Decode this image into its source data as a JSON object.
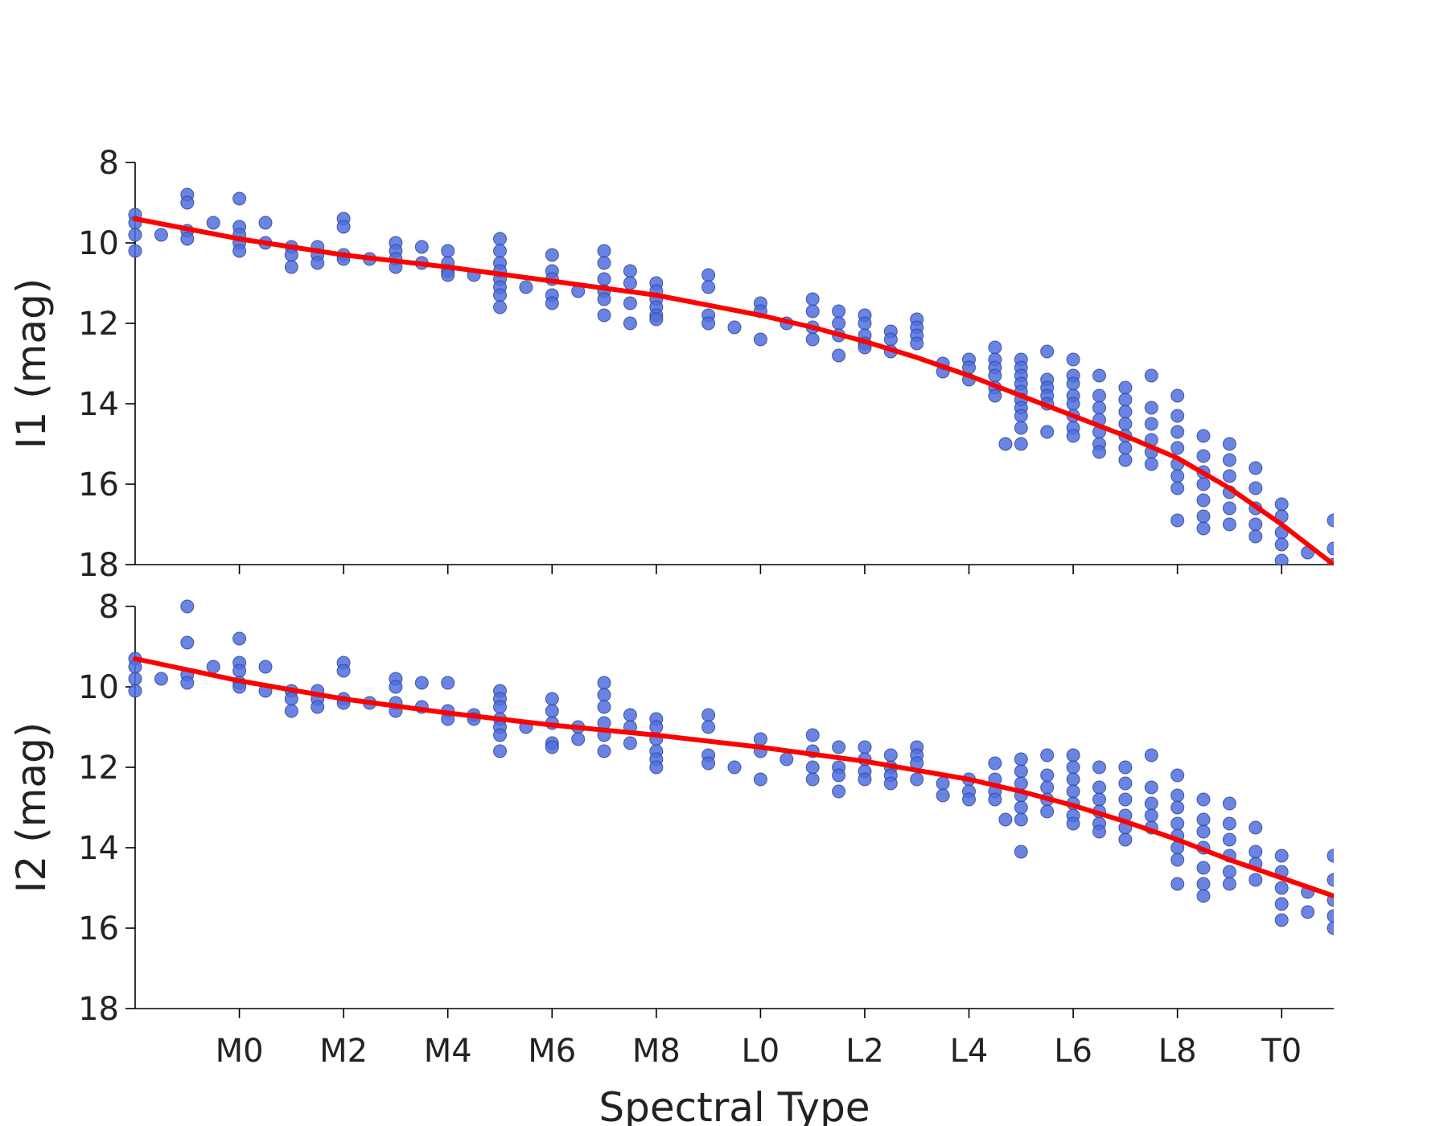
{
  "chart_data": {
    "type": "scatter",
    "xlabel": "Spectral Type",
    "x_tick_values": [
      0,
      2,
      4,
      6,
      8,
      10,
      12,
      14,
      16,
      18,
      20
    ],
    "x_tick_labels": [
      "M0",
      "M2",
      "M4",
      "M6",
      "M8",
      "L0",
      "L2",
      "L4",
      "L6",
      "L8",
      "T0"
    ],
    "xlim": [
      -2,
      21
    ],
    "colors": {
      "points": "#4f6fde",
      "fit": "#ff0000"
    },
    "panels": [
      {
        "ylabel": "I1 (mag)",
        "ylim": [
          8,
          18
        ],
        "y_inverted": true,
        "y_ticks": [
          8,
          10,
          12,
          14,
          16,
          18
        ],
        "fit_line": {
          "x": [
            -2,
            0,
            2,
            4,
            6,
            8,
            9,
            10,
            11,
            12,
            13,
            14,
            15,
            16,
            17,
            18,
            19,
            20,
            21
          ],
          "y": [
            9.4,
            9.9,
            10.3,
            10.6,
            10.95,
            11.3,
            11.55,
            11.8,
            12.1,
            12.45,
            12.85,
            13.3,
            13.8,
            14.3,
            14.8,
            15.35,
            16.1,
            17.0,
            18.0
          ]
        },
        "points": [
          {
            "x": -2,
            "y": [
              9.3,
              9.5,
              9.8,
              10.2
            ]
          },
          {
            "x": -1.5,
            "y": [
              9.8
            ]
          },
          {
            "x": -1,
            "y": [
              8.8,
              9.0,
              9.7,
              9.9
            ]
          },
          {
            "x": -0.5,
            "y": [
              9.5
            ]
          },
          {
            "x": 0,
            "y": [
              8.9,
              9.6,
              9.8,
              10.0,
              10.2
            ]
          },
          {
            "x": 0.5,
            "y": [
              9.5,
              10.0
            ]
          },
          {
            "x": 1,
            "y": [
              10.1,
              10.3,
              10.6
            ]
          },
          {
            "x": 1.5,
            "y": [
              10.1,
              10.3,
              10.5
            ]
          },
          {
            "x": 2,
            "y": [
              9.4,
              9.6,
              10.3,
              10.4
            ]
          },
          {
            "x": 2.5,
            "y": [
              10.4
            ]
          },
          {
            "x": 3,
            "y": [
              10.0,
              10.2,
              10.4,
              10.6
            ]
          },
          {
            "x": 3.5,
            "y": [
              10.1,
              10.5
            ]
          },
          {
            "x": 4,
            "y": [
              10.2,
              10.5,
              10.7,
              10.8
            ]
          },
          {
            "x": 4.5,
            "y": [
              10.8
            ]
          },
          {
            "x": 5,
            "y": [
              9.9,
              10.2,
              10.5,
              10.7,
              10.9,
              11.1,
              11.3,
              11.6
            ]
          },
          {
            "x": 5.5,
            "y": [
              11.1
            ]
          },
          {
            "x": 6,
            "y": [
              10.3,
              10.7,
              10.9,
              11.3,
              11.5
            ]
          },
          {
            "x": 6.5,
            "y": [
              11.2
            ]
          },
          {
            "x": 7,
            "y": [
              10.2,
              10.5,
              10.9,
              11.2,
              11.4,
              11.8
            ]
          },
          {
            "x": 7.5,
            "y": [
              10.7,
              11.0,
              11.5,
              12.0
            ]
          },
          {
            "x": 8,
            "y": [
              11.0,
              11.2,
              11.4,
              11.6,
              11.8,
              11.9
            ]
          },
          {
            "x": 9,
            "y": [
              10.8,
              11.1,
              11.8,
              12.0
            ]
          },
          {
            "x": 9.5,
            "y": [
              12.1
            ]
          },
          {
            "x": 10,
            "y": [
              11.5,
              11.7,
              12.4
            ]
          },
          {
            "x": 10.5,
            "y": [
              12.0
            ]
          },
          {
            "x": 11,
            "y": [
              11.4,
              11.7,
              12.1,
              12.4
            ]
          },
          {
            "x": 11.5,
            "y": [
              11.7,
              12.0,
              12.3,
              12.8
            ]
          },
          {
            "x": 12,
            "y": [
              11.8,
              12.0,
              12.3,
              12.5,
              12.6
            ]
          },
          {
            "x": 12.5,
            "y": [
              12.2,
              12.4,
              12.7
            ]
          },
          {
            "x": 13,
            "y": [
              11.9,
              12.1,
              12.3,
              12.5
            ]
          },
          {
            "x": 13.5,
            "y": [
              13.0,
              13.2
            ]
          },
          {
            "x": 14,
            "y": [
              12.9,
              13.1,
              13.4
            ]
          },
          {
            "x": 14.5,
            "y": [
              12.6,
              12.9,
              13.1,
              13.3,
              13.6,
              13.8
            ]
          },
          {
            "x": 14.7,
            "y": [
              15.0
            ]
          },
          {
            "x": 15,
            "y": [
              12.9,
              13.1,
              13.3,
              13.5,
              13.7,
              13.9,
              14.1,
              14.3,
              14.6,
              15.0
            ]
          },
          {
            "x": 15.5,
            "y": [
              12.7,
              13.4,
              13.6,
              13.8,
              14.0,
              14.7
            ]
          },
          {
            "x": 16,
            "y": [
              12.9,
              13.3,
              13.5,
              13.8,
              14.0,
              14.3,
              14.6,
              14.8
            ]
          },
          {
            "x": 16.5,
            "y": [
              13.3,
              13.8,
              14.1,
              14.4,
              14.7,
              15.0,
              15.2
            ]
          },
          {
            "x": 17,
            "y": [
              13.6,
              13.9,
              14.2,
              14.5,
              14.8,
              15.1,
              15.4
            ]
          },
          {
            "x": 17.5,
            "y": [
              13.3,
              14.1,
              14.5,
              14.9,
              15.2,
              15.5
            ]
          },
          {
            "x": 18,
            "y": [
              13.8,
              14.3,
              14.7,
              15.1,
              15.5,
              15.8,
              16.1,
              16.9
            ]
          },
          {
            "x": 18.5,
            "y": [
              14.8,
              15.3,
              15.7,
              16.0,
              16.4,
              16.8,
              17.1
            ]
          },
          {
            "x": 19,
            "y": [
              15.0,
              15.4,
              15.8,
              16.2,
              16.6,
              17.0
            ]
          },
          {
            "x": 19.5,
            "y": [
              15.6,
              16.1,
              16.6,
              17.0,
              17.3
            ]
          },
          {
            "x": 20,
            "y": [
              16.5,
              16.8,
              17.2,
              17.5,
              17.9
            ]
          },
          {
            "x": 20.5,
            "y": [
              17.7
            ]
          },
          {
            "x": 21,
            "y": [
              16.9,
              17.6,
              18.0
            ]
          }
        ]
      },
      {
        "ylabel": "I2 (mag)",
        "ylim": [
          8,
          18
        ],
        "y_inverted": true,
        "y_ticks": [
          8,
          10,
          12,
          14,
          16,
          18
        ],
        "fit_line": {
          "x": [
            -2,
            0,
            2,
            4,
            6,
            8,
            10,
            12,
            14,
            15,
            16,
            17,
            18,
            19,
            20,
            21
          ],
          "y": [
            9.3,
            9.85,
            10.3,
            10.65,
            10.95,
            11.2,
            11.5,
            11.85,
            12.3,
            12.6,
            12.95,
            13.35,
            13.8,
            14.3,
            14.75,
            15.2
          ]
        },
        "points": [
          {
            "x": -2,
            "y": [
              9.3,
              9.5,
              9.8,
              10.1
            ]
          },
          {
            "x": -1.5,
            "y": [
              9.8
            ]
          },
          {
            "x": -1,
            "y": [
              8.0,
              8.9,
              9.7,
              9.9
            ]
          },
          {
            "x": -0.5,
            "y": [
              9.5
            ]
          },
          {
            "x": 0,
            "y": [
              8.8,
              9.4,
              9.6,
              9.9,
              10.0
            ]
          },
          {
            "x": 0.5,
            "y": [
              9.5,
              10.1
            ]
          },
          {
            "x": 1,
            "y": [
              10.1,
              10.3,
              10.6
            ]
          },
          {
            "x": 1.5,
            "y": [
              10.1,
              10.3,
              10.5
            ]
          },
          {
            "x": 2,
            "y": [
              9.4,
              9.6,
              10.3,
              10.4
            ]
          },
          {
            "x": 2.5,
            "y": [
              10.4
            ]
          },
          {
            "x": 3,
            "y": [
              9.8,
              10.0,
              10.4,
              10.6
            ]
          },
          {
            "x": 3.5,
            "y": [
              9.9,
              10.5
            ]
          },
          {
            "x": 4,
            "y": [
              9.9,
              10.6,
              10.8
            ]
          },
          {
            "x": 4.5,
            "y": [
              10.7,
              10.8
            ]
          },
          {
            "x": 5,
            "y": [
              10.1,
              10.3,
              10.5,
              10.8,
              11.0,
              11.2,
              11.6
            ]
          },
          {
            "x": 5.5,
            "y": [
              11.0
            ]
          },
          {
            "x": 6,
            "y": [
              10.3,
              10.6,
              10.9,
              11.4,
              11.5
            ]
          },
          {
            "x": 6.5,
            "y": [
              11.0,
              11.3
            ]
          },
          {
            "x": 7,
            "y": [
              9.9,
              10.2,
              10.5,
              10.9,
              11.2,
              11.6
            ]
          },
          {
            "x": 7.5,
            "y": [
              10.7,
              11.0,
              11.4
            ]
          },
          {
            "x": 8,
            "y": [
              10.8,
              11.0,
              11.3,
              11.6,
              11.8,
              12.0
            ]
          },
          {
            "x": 9,
            "y": [
              10.7,
              11.0,
              11.7,
              11.9
            ]
          },
          {
            "x": 9.5,
            "y": [
              12.0
            ]
          },
          {
            "x": 10,
            "y": [
              11.3,
              11.6,
              12.3
            ]
          },
          {
            "x": 10.5,
            "y": [
              11.8
            ]
          },
          {
            "x": 11,
            "y": [
              11.2,
              11.6,
              12.0,
              12.3
            ]
          },
          {
            "x": 11.5,
            "y": [
              11.5,
              12.0,
              12.2,
              12.6
            ]
          },
          {
            "x": 12,
            "y": [
              11.5,
              11.8,
              12.1,
              12.3
            ]
          },
          {
            "x": 12.5,
            "y": [
              11.7,
              12.0,
              12.2,
              12.4
            ]
          },
          {
            "x": 13,
            "y": [
              11.5,
              11.7,
              11.9,
              12.3
            ]
          },
          {
            "x": 13.5,
            "y": [
              12.4,
              12.7
            ]
          },
          {
            "x": 14,
            "y": [
              12.3,
              12.6,
              12.8
            ]
          },
          {
            "x": 14.5,
            "y": [
              11.9,
              12.3,
              12.6,
              12.8
            ]
          },
          {
            "x": 14.7,
            "y": [
              13.3
            ]
          },
          {
            "x": 15,
            "y": [
              11.8,
              12.1,
              12.4,
              12.7,
              13.0,
              13.3,
              14.1
            ]
          },
          {
            "x": 15.5,
            "y": [
              11.7,
              12.2,
              12.5,
              12.8,
              13.1
            ]
          },
          {
            "x": 16,
            "y": [
              11.7,
              12.0,
              12.3,
              12.6,
              12.9,
              13.2,
              13.4
            ]
          },
          {
            "x": 16.5,
            "y": [
              12.0,
              12.5,
              12.8,
              13.1,
              13.4,
              13.6
            ]
          },
          {
            "x": 17,
            "y": [
              12.0,
              12.4,
              12.8,
              13.2,
              13.5,
              13.8
            ]
          },
          {
            "x": 17.5,
            "y": [
              11.7,
              12.5,
              12.9,
              13.2,
              13.5
            ]
          },
          {
            "x": 18,
            "y": [
              12.2,
              12.7,
              13.0,
              13.4,
              13.7,
              14.0,
              14.3,
              14.9
            ]
          },
          {
            "x": 18.5,
            "y": [
              12.8,
              13.3,
              13.6,
              14.0,
              14.5,
              14.9,
              15.2
            ]
          },
          {
            "x": 19,
            "y": [
              12.9,
              13.4,
              13.8,
              14.2,
              14.6,
              14.9
            ]
          },
          {
            "x": 19.5,
            "y": [
              13.5,
              14.1,
              14.4,
              14.8
            ]
          },
          {
            "x": 20,
            "y": [
              14.2,
              14.6,
              15.0,
              15.4,
              15.8
            ]
          },
          {
            "x": 20.5,
            "y": [
              15.1,
              15.6
            ]
          },
          {
            "x": 21,
            "y": [
              14.2,
              14.8,
              15.3,
              15.7,
              16.0
            ]
          }
        ]
      }
    ]
  }
}
